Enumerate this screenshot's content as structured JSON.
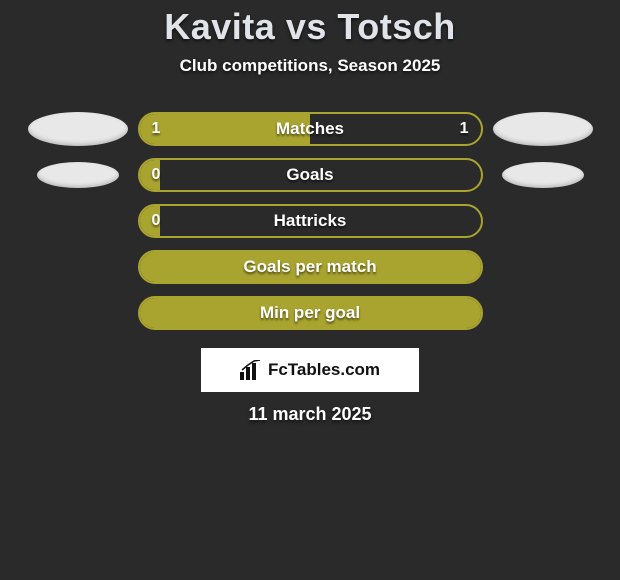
{
  "theme": {
    "background": "#2a2a2a",
    "bar_fill": "#a9a32f",
    "bar_border": "#a9a32f",
    "text_color": "#ffffff",
    "title_color": "#e0e4e8",
    "ellipse_color": "#e8e8e8",
    "logo_bg": "#ffffff",
    "logo_text_color": "#111111"
  },
  "title": {
    "player1": "Kavita",
    "vs": "vs",
    "player2": "Totsch",
    "fontsize": 36
  },
  "subtitle": "Club competitions, Season 2025",
  "stats": [
    {
      "label": "Matches",
      "left_value": "1",
      "right_value": "1",
      "left_pct": 50,
      "right_pct": 50,
      "show_values": true,
      "left_badge": "large",
      "right_badge": "large"
    },
    {
      "label": "Goals",
      "left_value": "0",
      "right_value": "",
      "left_pct": 6,
      "right_pct": 94,
      "show_values": true,
      "left_badge": "small",
      "right_badge": "small"
    },
    {
      "label": "Hattricks",
      "left_value": "0",
      "right_value": "",
      "left_pct": 6,
      "right_pct": 94,
      "show_values": true,
      "left_badge": "none",
      "right_badge": "none"
    },
    {
      "label": "Goals per match",
      "left_value": "",
      "right_value": "",
      "left_pct": 100,
      "right_pct": 0,
      "show_values": false,
      "left_badge": "none",
      "right_badge": "none"
    },
    {
      "label": "Min per goal",
      "left_value": "",
      "right_value": "",
      "left_pct": 100,
      "right_pct": 0,
      "show_values": false,
      "left_badge": "none",
      "right_badge": "none"
    }
  ],
  "logo_text": "FcTables.com",
  "date": "11 march 2025"
}
